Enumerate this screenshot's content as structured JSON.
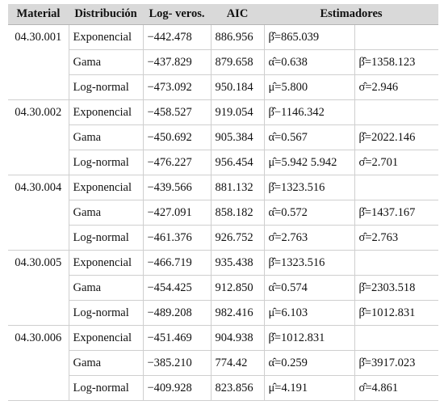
{
  "table": {
    "headers": [
      "Material",
      "Distribución",
      "Log- veros.",
      "AIC",
      "Estimadores"
    ],
    "groups": [
      {
        "material": "04.30.001",
        "rows": [
          {
            "dist": "Exponencial",
            "loglik": "−442.478",
            "aic": "886.956",
            "est1": "β̂=865.039",
            "est2": ""
          },
          {
            "dist": "Gama",
            "loglik": "−437.829",
            "aic": "879.658",
            "est1": "α̂=0.638",
            "est2": "β̂=1358.123"
          },
          {
            "dist": "Log-normal",
            "loglik": "−473.092",
            "aic": "950.184",
            "est1": "μ̂=5.800",
            "est2": "σ̂=2.946"
          }
        ]
      },
      {
        "material": "04.30.002",
        "rows": [
          {
            "dist": "Exponencial",
            "loglik": "−458.527",
            "aic": "919.054",
            "est1": "β̂−1146.342",
            "est2": ""
          },
          {
            "dist": "Gama",
            "loglik": "−450.692",
            "aic": "905.384",
            "est1": "α̂=0.567",
            "est2": "β̂=2022.146"
          },
          {
            "dist": "Log-normal",
            "loglik": "−476.227",
            "aic": "956.454",
            "est1": "μ̂=5.942 5.942",
            "est2": "σ̂=2.701"
          }
        ]
      },
      {
        "material": "04.30.004",
        "rows": [
          {
            "dist": "Exponencial",
            "loglik": "−439.566",
            "aic": "881.132",
            "est1": "β̂=1323.516",
            "est2": ""
          },
          {
            "dist": "Gama",
            "loglik": "−427.091",
            "aic": "858.182",
            "est1": "α̂=0.572",
            "est2": "β̂=1437.167"
          },
          {
            "dist": "Log-normal",
            "loglik": "−461.376",
            "aic": "926.752",
            "est1": "σ̂=2.763",
            "est2": "σ̂=2.763"
          }
        ]
      },
      {
        "material": "04.30.005",
        "rows": [
          {
            "dist": "Exponencial",
            "loglik": "−466.719",
            "aic": "935.438",
            "est1": "β̂=1323.516",
            "est2": ""
          },
          {
            "dist": "Gama",
            "loglik": "−454.425",
            "aic": "912.850",
            "est1": "α̂=0.574",
            "est2": "β̂=2303.518"
          },
          {
            "dist": "Log-normal",
            "loglik": "−489.208",
            "aic": "982.416",
            "est1": "μ̂=6.103",
            "est2": "β̂=1012.831"
          }
        ]
      },
      {
        "material": "04.30.006",
        "rows": [
          {
            "dist": "Exponencial",
            "loglik": "−451.469",
            "aic": "904.938",
            "est1": "β̂=1012.831",
            "est2": ""
          },
          {
            "dist": "Gama",
            "loglik": "−385.210",
            "aic": "774.42",
            "est1": "α̂=0.259",
            "est2": "β̂=3917.023"
          },
          {
            "dist": "Log-normal",
            "loglik": "−409.928",
            "aic": "823.856",
            "est1": "μ̂=4.191",
            "est2": "σ̂=4.861"
          }
        ]
      }
    ]
  }
}
